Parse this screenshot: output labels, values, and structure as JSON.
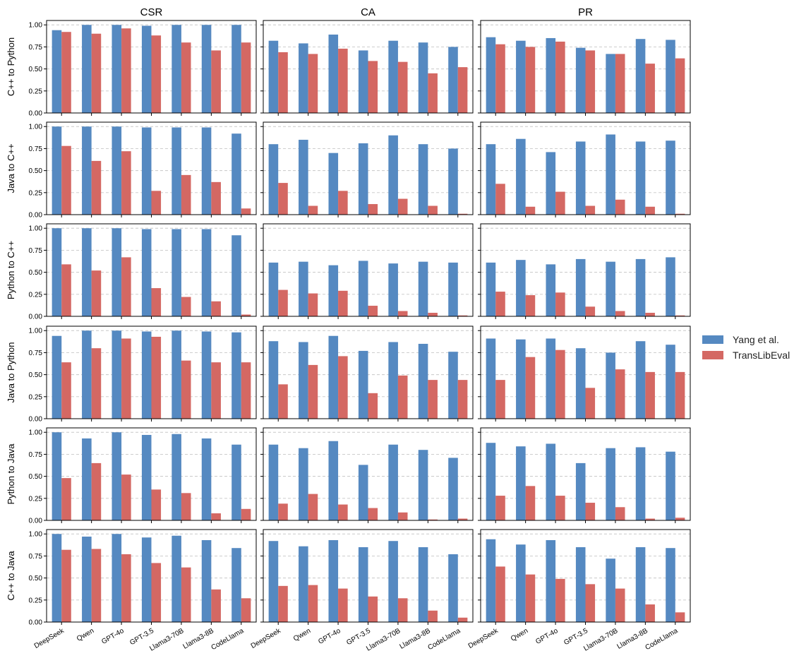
{
  "chart_data": {
    "type": "bar",
    "layout": "grid",
    "colors": {
      "Yang et al.": "#5589C1",
      "TransLibEval": "#D46863"
    },
    "legend": {
      "position": "right",
      "entries": [
        "Yang et al.",
        "TransLibEval"
      ]
    },
    "columns": [
      "CSR",
      "CA",
      "PR"
    ],
    "rows": [
      "C++ to Python",
      "Java to C++",
      "Python to C++",
      "Java to Python",
      "Python to Java",
      "C++ to Java"
    ],
    "categories": [
      "DeepSeek",
      "Qwen",
      "GPT-4o",
      "GPT-3.5",
      "Llama3-70B",
      "Llama3-8B",
      "CodeLlama"
    ],
    "ylim": [
      0,
      1.05
    ],
    "yticks": [
      "0.00",
      "0.25",
      "0.50",
      "0.75",
      "1.00"
    ],
    "grid": "y-dashed",
    "panels": [
      {
        "row": "C++ to Python",
        "col": "CSR",
        "series": [
          {
            "name": "Yang et al.",
            "values": [
              0.94,
              1.0,
              1.0,
              0.99,
              1.0,
              1.0,
              1.0
            ]
          },
          {
            "name": "TransLibEval",
            "values": [
              0.92,
              0.9,
              0.96,
              0.88,
              0.8,
              0.71,
              0.8
            ]
          }
        ]
      },
      {
        "row": "C++ to Python",
        "col": "CA",
        "series": [
          {
            "name": "Yang et al.",
            "values": [
              0.82,
              0.79,
              0.89,
              0.71,
              0.82,
              0.8,
              0.75
            ]
          },
          {
            "name": "TransLibEval",
            "values": [
              0.69,
              0.67,
              0.73,
              0.59,
              0.58,
              0.45,
              0.52
            ]
          }
        ]
      },
      {
        "row": "C++ to Python",
        "col": "PR",
        "series": [
          {
            "name": "Yang et al.",
            "values": [
              0.86,
              0.82,
              0.85,
              0.74,
              0.67,
              0.84,
              0.83
            ]
          },
          {
            "name": "TransLibEval",
            "values": [
              0.78,
              0.75,
              0.81,
              0.71,
              0.67,
              0.56,
              0.62
            ]
          }
        ]
      },
      {
        "row": "Java to C++",
        "col": "CSR",
        "series": [
          {
            "name": "Yang et al.",
            "values": [
              1.0,
              1.0,
              1.0,
              0.99,
              0.99,
              0.99,
              0.92
            ]
          },
          {
            "name": "TransLibEval",
            "values": [
              0.78,
              0.61,
              0.72,
              0.27,
              0.45,
              0.37,
              0.07
            ]
          }
        ]
      },
      {
        "row": "Java to C++",
        "col": "CA",
        "series": [
          {
            "name": "Yang et al.",
            "values": [
              0.8,
              0.85,
              0.7,
              0.81,
              0.9,
              0.8,
              0.75
            ]
          },
          {
            "name": "TransLibEval",
            "values": [
              0.36,
              0.1,
              0.27,
              0.12,
              0.18,
              0.1,
              0.01
            ]
          }
        ]
      },
      {
        "row": "Java to C++",
        "col": "PR",
        "series": [
          {
            "name": "Yang et al.",
            "values": [
              0.8,
              0.86,
              0.71,
              0.83,
              0.91,
              0.83,
              0.84
            ]
          },
          {
            "name": "TransLibEval",
            "values": [
              0.35,
              0.09,
              0.26,
              0.1,
              0.17,
              0.09,
              0.01
            ]
          }
        ]
      },
      {
        "row": "Python to C++",
        "col": "CSR",
        "series": [
          {
            "name": "Yang et al.",
            "values": [
              1.0,
              1.0,
              1.0,
              0.99,
              0.99,
              0.99,
              0.92
            ]
          },
          {
            "name": "TransLibEval",
            "values": [
              0.59,
              0.52,
              0.67,
              0.32,
              0.22,
              0.17,
              0.02
            ]
          }
        ]
      },
      {
        "row": "Python to C++",
        "col": "CA",
        "series": [
          {
            "name": "Yang et al.",
            "values": [
              0.61,
              0.62,
              0.58,
              0.63,
              0.6,
              0.62,
              0.61
            ]
          },
          {
            "name": "TransLibEval",
            "values": [
              0.3,
              0.26,
              0.29,
              0.12,
              0.06,
              0.04,
              0.01
            ]
          }
        ]
      },
      {
        "row": "Python to C++",
        "col": "PR",
        "series": [
          {
            "name": "Yang et al.",
            "values": [
              0.61,
              0.64,
              0.59,
              0.65,
              0.62,
              0.65,
              0.67
            ]
          },
          {
            "name": "TransLibEval",
            "values": [
              0.28,
              0.24,
              0.27,
              0.11,
              0.06,
              0.04,
              0.01
            ]
          }
        ]
      },
      {
        "row": "Java to Python",
        "col": "CSR",
        "series": [
          {
            "name": "Yang et al.",
            "values": [
              0.94,
              1.0,
              1.0,
              0.99,
              1.0,
              0.99,
              0.98
            ]
          },
          {
            "name": "TransLibEval",
            "values": [
              0.64,
              0.8,
              0.91,
              0.93,
              0.66,
              0.64,
              0.64
            ]
          }
        ]
      },
      {
        "row": "Java to Python",
        "col": "CA",
        "series": [
          {
            "name": "Yang et al.",
            "values": [
              0.88,
              0.87,
              0.94,
              0.77,
              0.87,
              0.85,
              0.76
            ]
          },
          {
            "name": "TransLibEval",
            "values": [
              0.39,
              0.61,
              0.71,
              0.29,
              0.49,
              0.44,
              0.44
            ]
          }
        ]
      },
      {
        "row": "Java to Python",
        "col": "PR",
        "series": [
          {
            "name": "Yang et al.",
            "values": [
              0.91,
              0.9,
              0.91,
              0.8,
              0.75,
              0.88,
              0.84
            ]
          },
          {
            "name": "TransLibEval",
            "values": [
              0.44,
              0.7,
              0.78,
              0.35,
              0.56,
              0.53,
              0.53
            ]
          }
        ]
      },
      {
        "row": "Python to Java",
        "col": "CSR",
        "series": [
          {
            "name": "Yang et al.",
            "values": [
              1.0,
              0.93,
              1.0,
              0.97,
              0.98,
              0.93,
              0.86
            ]
          },
          {
            "name": "TransLibEval",
            "values": [
              0.48,
              0.65,
              0.52,
              0.35,
              0.31,
              0.08,
              0.13
            ]
          }
        ]
      },
      {
        "row": "Python to Java",
        "col": "CA",
        "series": [
          {
            "name": "Yang et al.",
            "values": [
              0.86,
              0.82,
              0.9,
              0.63,
              0.86,
              0.8,
              0.71
            ]
          },
          {
            "name": "TransLibEval",
            "values": [
              0.19,
              0.3,
              0.18,
              0.14,
              0.09,
              0.01,
              0.02
            ]
          }
        ]
      },
      {
        "row": "Python to Java",
        "col": "PR",
        "series": [
          {
            "name": "Yang et al.",
            "values": [
              0.88,
              0.84,
              0.87,
              0.65,
              0.82,
              0.83,
              0.78
            ]
          },
          {
            "name": "TransLibEval",
            "values": [
              0.28,
              0.39,
              0.28,
              0.2,
              0.15,
              0.02,
              0.03
            ]
          }
        ]
      },
      {
        "row": "C++ to Java",
        "col": "CSR",
        "series": [
          {
            "name": "Yang et al.",
            "values": [
              1.0,
              0.97,
              1.0,
              0.96,
              0.98,
              0.93,
              0.84
            ]
          },
          {
            "name": "TransLibEval",
            "values": [
              0.82,
              0.83,
              0.77,
              0.67,
              0.62,
              0.37,
              0.27
            ]
          }
        ]
      },
      {
        "row": "C++ to Java",
        "col": "CA",
        "series": [
          {
            "name": "Yang et al.",
            "values": [
              0.92,
              0.86,
              0.93,
              0.85,
              0.92,
              0.85,
              0.77
            ]
          },
          {
            "name": "TransLibEval",
            "values": [
              0.41,
              0.42,
              0.38,
              0.29,
              0.27,
              0.13,
              0.05
            ]
          }
        ]
      },
      {
        "row": "C++ to Java",
        "col": "PR",
        "series": [
          {
            "name": "Yang et al.",
            "values": [
              0.94,
              0.88,
              0.93,
              0.85,
              0.72,
              0.85,
              0.84
            ]
          },
          {
            "name": "TransLibEval",
            "values": [
              0.63,
              0.54,
              0.49,
              0.43,
              0.38,
              0.2,
              0.11
            ]
          }
        ]
      }
    ]
  }
}
